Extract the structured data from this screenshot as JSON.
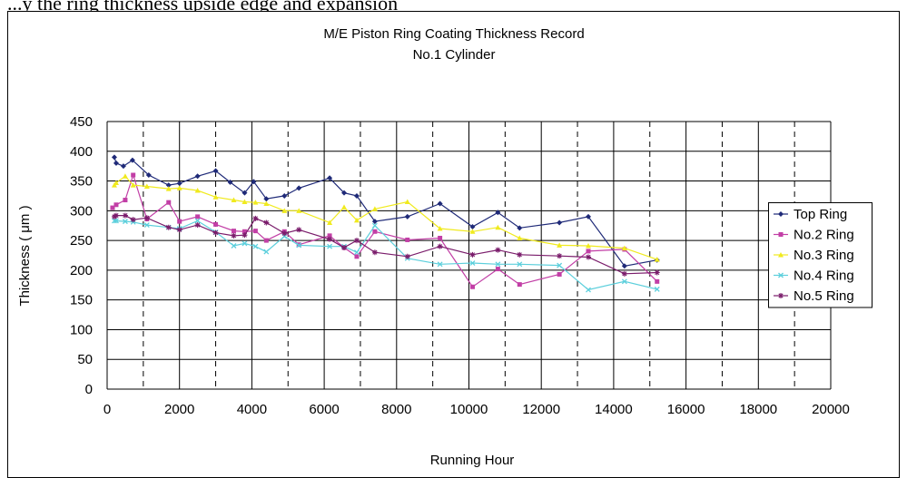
{
  "page_caption": "...y the ring thickness upside edge and expansion",
  "chart_data": {
    "type": "line",
    "title": "M/E Piston Ring Coating Thickness Record",
    "subtitle": "No.1 Cylinder",
    "xlabel": "Running Hour",
    "ylabel": "Thickness ( μm )",
    "xlim": [
      0,
      20000
    ],
    "ylim": [
      0,
      450
    ],
    "x_ticks": [
      0,
      2000,
      4000,
      6000,
      8000,
      10000,
      12000,
      14000,
      16000,
      18000,
      20000
    ],
    "y_ticks": [
      0,
      50,
      100,
      150,
      200,
      250,
      300,
      350,
      400,
      450
    ],
    "x_dashed_gridlines": [
      1000,
      3000,
      5000,
      7000,
      9000,
      11000,
      13000,
      15000,
      17000,
      19000
    ],
    "legend_position": "right",
    "series": [
      {
        "name": "Top Ring",
        "color": "#1f2a78",
        "marker": "diamond",
        "points": [
          [
            200,
            390
          ],
          [
            250,
            380
          ],
          [
            450,
            375
          ],
          [
            700,
            385
          ],
          [
            1150,
            360
          ],
          [
            1700,
            343
          ],
          [
            2000,
            346
          ],
          [
            2500,
            358
          ],
          [
            3000,
            367
          ],
          [
            3400,
            348
          ],
          [
            3800,
            330
          ],
          [
            4050,
            349
          ],
          [
            4400,
            320
          ],
          [
            4900,
            325
          ],
          [
            5300,
            338
          ],
          [
            6150,
            355
          ],
          [
            6550,
            330
          ],
          [
            6900,
            325
          ],
          [
            7400,
            282
          ],
          [
            8300,
            290
          ],
          [
            9200,
            312
          ],
          [
            10100,
            273
          ],
          [
            10800,
            297
          ],
          [
            11400,
            271
          ],
          [
            12500,
            280
          ],
          [
            13300,
            290
          ],
          [
            14300,
            207
          ],
          [
            15200,
            217
          ]
        ]
      },
      {
        "name": "No.2 Ring",
        "color": "#c23fa6",
        "marker": "square",
        "points": [
          [
            150,
            305
          ],
          [
            250,
            310
          ],
          [
            500,
            318
          ],
          [
            720,
            360
          ],
          [
            1100,
            286
          ],
          [
            1700,
            314
          ],
          [
            2000,
            282
          ],
          [
            2500,
            290
          ],
          [
            3000,
            277
          ],
          [
            3500,
            266
          ],
          [
            3800,
            265
          ],
          [
            4100,
            266
          ],
          [
            4400,
            250
          ],
          [
            4900,
            265
          ],
          [
            5300,
            243
          ],
          [
            6150,
            258
          ],
          [
            6550,
            238
          ],
          [
            6900,
            223
          ],
          [
            7400,
            265
          ],
          [
            8300,
            251
          ],
          [
            9200,
            254
          ],
          [
            10100,
            172
          ],
          [
            10800,
            202
          ],
          [
            11400,
            176
          ],
          [
            12500,
            193
          ],
          [
            13300,
            232
          ],
          [
            14300,
            235
          ],
          [
            15200,
            181
          ]
        ]
      },
      {
        "name": "No.3 Ring",
        "color": "#f0ea1e",
        "marker": "triangle",
        "points": [
          [
            200,
            343
          ],
          [
            250,
            347
          ],
          [
            500,
            358
          ],
          [
            720,
            343
          ],
          [
            1100,
            341
          ],
          [
            1700,
            337
          ],
          [
            2000,
            338
          ],
          [
            2500,
            334
          ],
          [
            3000,
            323
          ],
          [
            3500,
            318
          ],
          [
            3800,
            315
          ],
          [
            4100,
            314
          ],
          [
            4400,
            312
          ],
          [
            4900,
            300
          ],
          [
            5300,
            300
          ],
          [
            6150,
            280
          ],
          [
            6550,
            306
          ],
          [
            6900,
            284
          ],
          [
            7400,
            303
          ],
          [
            8300,
            315
          ],
          [
            9200,
            270
          ],
          [
            10100,
            265
          ],
          [
            10800,
            272
          ],
          [
            11400,
            254
          ],
          [
            12500,
            242
          ],
          [
            13300,
            241
          ],
          [
            14300,
            237
          ],
          [
            15200,
            218
          ]
        ]
      },
      {
        "name": "No.4 Ring",
        "color": "#5ccfdc",
        "marker": "x",
        "points": [
          [
            200,
            283
          ],
          [
            250,
            283
          ],
          [
            500,
            282
          ],
          [
            720,
            281
          ],
          [
            1100,
            276
          ],
          [
            1700,
            272
          ],
          [
            2000,
            270
          ],
          [
            2500,
            283
          ],
          [
            3000,
            264
          ],
          [
            3500,
            241
          ],
          [
            3800,
            245
          ],
          [
            4100,
            240
          ],
          [
            4400,
            231
          ],
          [
            4900,
            257
          ],
          [
            5300,
            242
          ],
          [
            6150,
            240
          ],
          [
            6550,
            240
          ],
          [
            6900,
            230
          ],
          [
            7400,
            275
          ],
          [
            8300,
            220
          ],
          [
            9200,
            210
          ],
          [
            10100,
            212
          ],
          [
            10800,
            210
          ],
          [
            11400,
            210
          ],
          [
            12500,
            208
          ],
          [
            13300,
            167
          ],
          [
            14300,
            181
          ],
          [
            15200,
            168
          ]
        ]
      },
      {
        "name": "No.5 Ring",
        "color": "#7a1c6b",
        "marker": "asterisk",
        "points": [
          [
            200,
            290
          ],
          [
            250,
            292
          ],
          [
            500,
            292
          ],
          [
            720,
            285
          ],
          [
            1100,
            288
          ],
          [
            1700,
            272
          ],
          [
            2000,
            268
          ],
          [
            2500,
            276
          ],
          [
            3000,
            263
          ],
          [
            3500,
            258
          ],
          [
            3800,
            259
          ],
          [
            4100,
            287
          ],
          [
            4400,
            280
          ],
          [
            4900,
            262
          ],
          [
            5300,
            268
          ],
          [
            6150,
            252
          ],
          [
            6550,
            238
          ],
          [
            6900,
            250
          ],
          [
            7400,
            230
          ],
          [
            8300,
            223
          ],
          [
            9200,
            240
          ],
          [
            10100,
            226
          ],
          [
            10800,
            234
          ],
          [
            11400,
            226
          ],
          [
            12500,
            224
          ],
          [
            13300,
            222
          ],
          [
            14300,
            194
          ],
          [
            15200,
            196
          ]
        ]
      }
    ]
  }
}
